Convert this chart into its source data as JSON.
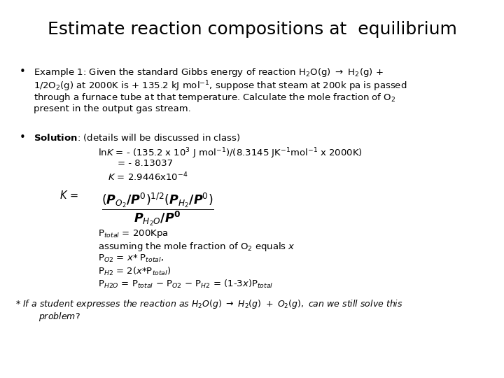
{
  "title": "Estimate reaction compositions at  equilibrium",
  "background_color": "#ffffff",
  "text_color": "#000000",
  "title_fontsize": 18,
  "body_fontsize": 9.5
}
